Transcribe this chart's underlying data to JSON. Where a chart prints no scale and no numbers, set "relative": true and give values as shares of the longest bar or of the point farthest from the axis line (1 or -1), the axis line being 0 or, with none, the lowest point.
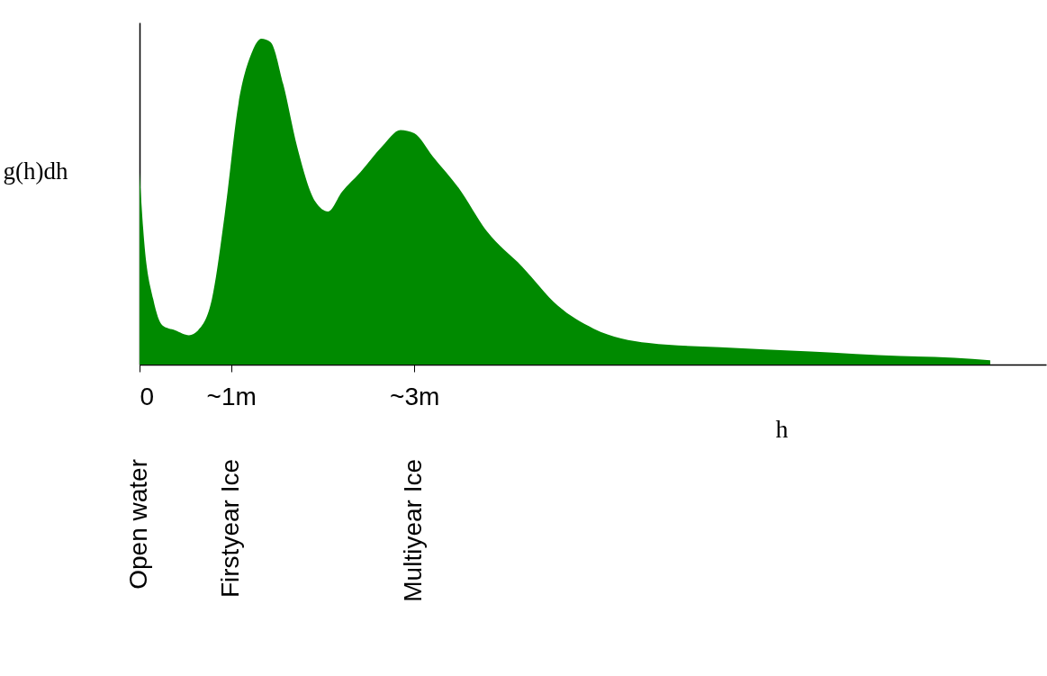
{
  "chart_data": {
    "type": "area",
    "relative": true,
    "ylabel": "g(h)dh",
    "xlabel": "h",
    "x": [
      0,
      0.05,
      0.15,
      0.25,
      0.39,
      0.54,
      0.64,
      0.79,
      0.93,
      1.08,
      1.23,
      1.33,
      1.43,
      1.57,
      1.72,
      1.92,
      2.06,
      2.21,
      2.41,
      2.65,
      2.85,
      3.0,
      3.2,
      3.49,
      3.79,
      4.18,
      4.57,
      4.96,
      5.56,
      6.34,
      7.33,
      8.31,
      8.9,
      9.29
    ],
    "series": [
      {
        "color": "#008a00",
        "values": [
          0.59,
          0.38,
          0.2,
          0.12,
          0.105,
          0.09,
          0.105,
          0.2,
          0.46,
          0.8,
          0.96,
          1.0,
          0.99,
          0.86,
          0.67,
          0.5,
          0.47,
          0.53,
          0.59,
          0.67,
          0.72,
          0.71,
          0.64,
          0.54,
          0.41,
          0.3,
          0.18,
          0.11,
          0.066,
          0.053,
          0.04,
          0.026,
          0.021,
          0.013
        ]
      }
    ],
    "xlim": [
      0,
      9.9
    ],
    "xticks": [
      0,
      {
        "value": 1,
        "label": "~1m"
      },
      {
        "value": 3,
        "label": "~3m"
      }
    ],
    "grid": false,
    "annotations": [
      "Open water",
      "Firstyear Ice",
      "Multiyear Ice"
    ]
  }
}
